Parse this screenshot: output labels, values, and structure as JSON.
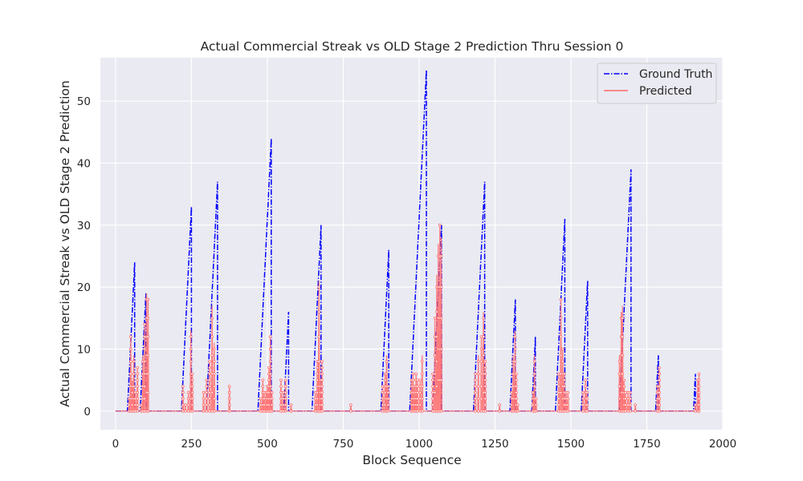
{
  "chart_data": {
    "type": "line",
    "title": "Actual Commercial Streak vs OLD Stage 2 Prediction Thru Session 0",
    "xlabel": "Block Sequence",
    "ylabel": "Actual Commercial Streak vs OLD Stage 2 Prediction",
    "xlim": [
      -50,
      2000
    ],
    "ylim": [
      -3,
      57
    ],
    "xticks": [
      0,
      250,
      500,
      750,
      1000,
      1250,
      1500,
      1750,
      2000
    ],
    "yticks": [
      0,
      10,
      20,
      30,
      40,
      50
    ],
    "grid": true,
    "legend_position": "top-right",
    "series": [
      {
        "name": "Ground Truth",
        "color": "#0000ff",
        "style": "dash-dot",
        "streaks": [
          [
            40,
            24
          ],
          [
            82,
            19
          ],
          [
            218,
            33
          ],
          [
            300,
            37
          ],
          [
            470,
            44
          ],
          [
            555,
            16
          ],
          [
            648,
            30
          ],
          [
            875,
            26
          ],
          [
            970,
            55
          ],
          [
            1045,
            30
          ],
          [
            1180,
            37
          ],
          [
            1300,
            18
          ],
          [
            1372,
            12
          ],
          [
            1450,
            31
          ],
          [
            1535,
            21
          ],
          [
            1660,
            39
          ],
          [
            1780,
            9
          ],
          [
            1905,
            6
          ]
        ]
      },
      {
        "name": "Predicted",
        "color": "#ff6b6b",
        "style": "solid",
        "bursts": [
          [
            45,
            2
          ],
          [
            50,
            12
          ],
          [
            55,
            5
          ],
          [
            60,
            9
          ],
          [
            65,
            3
          ],
          [
            72,
            7
          ],
          [
            85,
            1
          ],
          [
            90,
            9
          ],
          [
            96,
            14
          ],
          [
            102,
            19
          ],
          [
            107,
            18
          ],
          [
            222,
            4
          ],
          [
            230,
            1
          ],
          [
            240,
            3
          ],
          [
            248,
            13
          ],
          [
            253,
            6
          ],
          [
            290,
            3
          ],
          [
            300,
            5
          ],
          [
            310,
            8
          ],
          [
            318,
            17
          ],
          [
            325,
            11
          ],
          [
            375,
            4
          ],
          [
            478,
            2
          ],
          [
            485,
            5
          ],
          [
            490,
            3
          ],
          [
            496,
            3
          ],
          [
            500,
            4
          ],
          [
            505,
            7
          ],
          [
            510,
            12
          ],
          [
            515,
            3
          ],
          [
            545,
            5
          ],
          [
            552,
            3
          ],
          [
            560,
            5
          ],
          [
            578,
            1
          ],
          [
            658,
            3
          ],
          [
            665,
            8
          ],
          [
            670,
            21
          ],
          [
            675,
            5
          ],
          [
            680,
            8
          ],
          [
            775,
            1
          ],
          [
            880,
            4
          ],
          [
            888,
            6
          ],
          [
            893,
            9
          ],
          [
            898,
            4
          ],
          [
            975,
            5
          ],
          [
            980,
            6
          ],
          [
            985,
            4
          ],
          [
            990,
            6
          ],
          [
            995,
            5
          ],
          [
            1003,
            5
          ],
          [
            1010,
            9
          ],
          [
            1045,
            6
          ],
          [
            1052,
            15
          ],
          [
            1058,
            22
          ],
          [
            1063,
            27
          ],
          [
            1068,
            30
          ],
          [
            1073,
            28
          ],
          [
            1185,
            6
          ],
          [
            1195,
            9
          ],
          [
            1205,
            12
          ],
          [
            1212,
            16
          ],
          [
            1218,
            8
          ],
          [
            1265,
            1
          ],
          [
            1305,
            3
          ],
          [
            1310,
            9
          ],
          [
            1316,
            13
          ],
          [
            1320,
            6
          ],
          [
            1325,
            1
          ],
          [
            1375,
            3
          ],
          [
            1380,
            9
          ],
          [
            1385,
            2
          ],
          [
            1460,
            6
          ],
          [
            1467,
            18
          ],
          [
            1473,
            10
          ],
          [
            1478,
            6
          ],
          [
            1484,
            3
          ],
          [
            1490,
            3
          ],
          [
            1540,
            3
          ],
          [
            1548,
            5
          ],
          [
            1553,
            3
          ],
          [
            1660,
            9
          ],
          [
            1666,
            16
          ],
          [
            1670,
            17
          ],
          [
            1675,
            5
          ],
          [
            1680,
            3
          ],
          [
            1688,
            3
          ],
          [
            1695,
            3
          ],
          [
            1712,
            1
          ],
          [
            1785,
            4
          ],
          [
            1791,
            7
          ],
          [
            1910,
            1
          ],
          [
            1918,
            5
          ],
          [
            1922,
            6
          ]
        ]
      }
    ]
  }
}
